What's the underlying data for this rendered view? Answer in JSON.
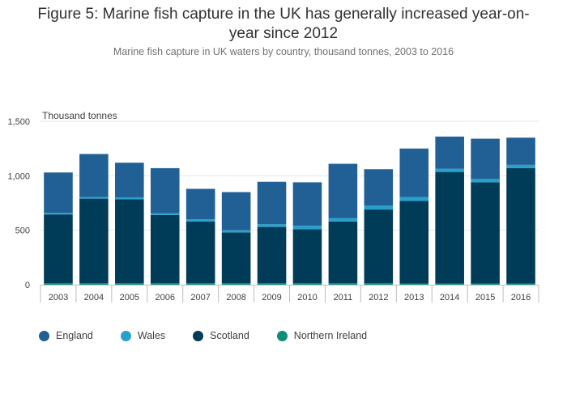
{
  "chart_data": {
    "type": "bar",
    "stacked": true,
    "title": "Figure 5: Marine fish capture in the UK has generally increased year-on-year since 2012",
    "subtitle": "Marine fish capture in UK waters by country, thousand tonnes, 2003 to 2016",
    "ylabel": "Thousand tonnes",
    "xlabel": "",
    "ylim": [
      0,
      1500
    ],
    "yticks": [
      0,
      500,
      1000,
      1500
    ],
    "ytick_labels": [
      "0",
      "500",
      "1,000",
      "1,500"
    ],
    "categories": [
      "2003",
      "2004",
      "2005",
      "2006",
      "2007",
      "2008",
      "2009",
      "2010",
      "2011",
      "2012",
      "2013",
      "2014",
      "2015",
      "2016"
    ],
    "series": [
      {
        "name": "Northern Ireland",
        "color": "#0f8c79",
        "values": [
          15,
          15,
          15,
          15,
          15,
          15,
          15,
          15,
          15,
          15,
          10,
          10,
          10,
          10
        ]
      },
      {
        "name": "Scotland",
        "color": "#003c57",
        "values": [
          630,
          775,
          770,
          625,
          565,
          465,
          515,
          495,
          565,
          675,
          760,
          1025,
          930,
          1060
        ]
      },
      {
        "name": "Wales",
        "color": "#27a0cc",
        "values": [
          15,
          15,
          15,
          15,
          20,
          20,
          25,
          30,
          30,
          35,
          35,
          30,
          30,
          30
        ]
      },
      {
        "name": "England",
        "color": "#206095",
        "values": [
          370,
          395,
          320,
          415,
          280,
          350,
          390,
          400,
          500,
          335,
          445,
          295,
          370,
          250
        ]
      }
    ],
    "legend": {
      "position": "bottom-left",
      "order": [
        "England",
        "Wales",
        "Scotland",
        "Northern Ireland"
      ]
    },
    "grid": true
  }
}
